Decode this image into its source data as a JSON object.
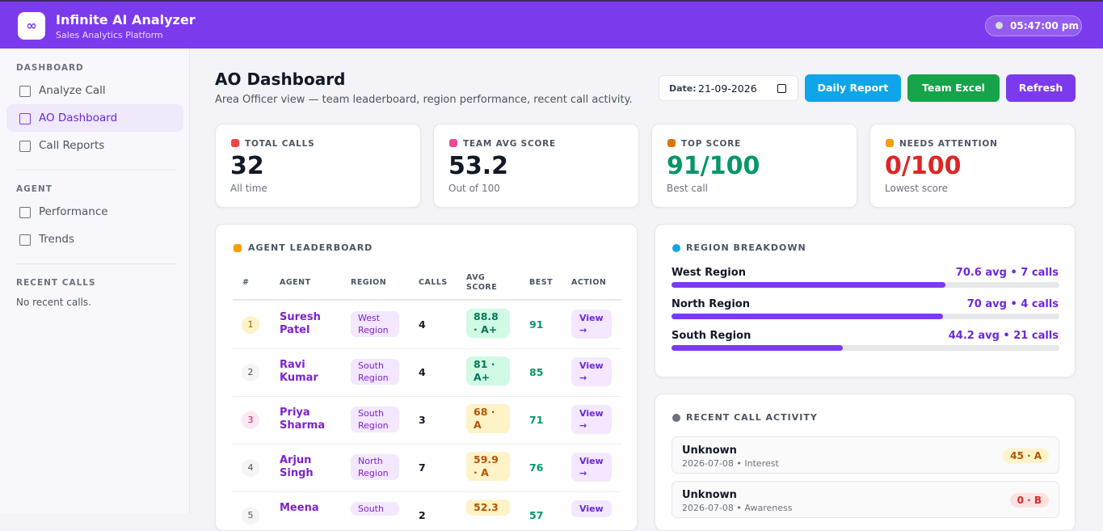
{
  "header": {
    "logo": "∞",
    "title": "Infinite AI Analyzer",
    "subtitle": "Sales Analytics Platform",
    "time": "05:47:00 pm"
  },
  "sidebar": {
    "sections": [
      {
        "heading": "DASHBOARD",
        "items": [
          "Analyze Call",
          "AO Dashboard",
          "Call Reports"
        ]
      },
      {
        "heading": "AGENT",
        "items": [
          "Performance",
          "Trends"
        ]
      },
      {
        "heading": "RECENT CALLS",
        "empty": "No recent calls."
      }
    ]
  },
  "main": {
    "title": "AO Dashboard",
    "subtitle": "Area Officer view — team leaderboard, region performance, recent call activity.",
    "date_label": "Date:",
    "date_value": "21-09-2026",
    "buttons": [
      "Daily Report",
      "Team Excel",
      "Refresh"
    ]
  },
  "stats": [
    {
      "label": "TOTAL CALLS",
      "value": "32",
      "note": "All time"
    },
    {
      "label": "TEAM AVG SCORE",
      "value": "53.2",
      "note": "Out of 100"
    },
    {
      "label": "TOP SCORE",
      "value": "91/100",
      "note": "Best call"
    },
    {
      "label": "NEEDS ATTENTION",
      "value": "0/100",
      "note": "Lowest score"
    }
  ],
  "leaderboard": {
    "title": "AGENT LEADERBOARD",
    "columns": [
      "#",
      "AGENT",
      "REGION",
      "CALLS",
      "AVG SCORE",
      "BEST",
      "ACTION"
    ],
    "rows": [
      [
        "1",
        "Suresh Patel",
        "West Region",
        "4",
        "88.8 · A+",
        "91",
        "View →"
      ],
      [
        "2",
        "Ravi Kumar",
        "South Region",
        "4",
        "81 · A+",
        "85",
        "View →"
      ],
      [
        "3",
        "Priya Sharma",
        "South Region",
        "3",
        "68 · A",
        "71",
        "View →"
      ],
      [
        "4",
        "Arjun Singh",
        "North Region",
        "7",
        "59.9 · A",
        "76",
        "View →"
      ],
      [
        "5",
        "Meena",
        "South",
        "2",
        "52.3",
        "57",
        "View"
      ]
    ]
  },
  "regions": {
    "title": "REGION BREAKDOWN",
    "items": [
      {
        "name": "West Region",
        "avg": 70.6,
        "label": "70.6 avg • 7 calls"
      },
      {
        "name": "North Region",
        "avg": 70,
        "label": "70 avg • 4 calls"
      },
      {
        "name": "South Region",
        "avg": 44.2,
        "label": "44.2 avg • 21 calls"
      }
    ]
  },
  "activity": {
    "title": "RECENT CALL ACTIVITY",
    "items": [
      {
        "name": "Unknown",
        "meta": "2026-07-08 • Interest",
        "score": "45 · A"
      },
      {
        "name": "Unknown",
        "meta": "2026-07-08 • Awareness",
        "score": "0 · B"
      }
    ]
  }
}
